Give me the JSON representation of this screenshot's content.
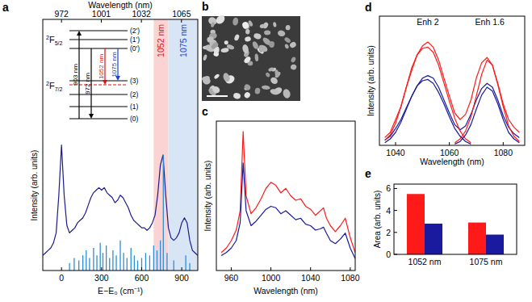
{
  "chart_data": [
    {
      "type": "line",
      "panel_label": "a",
      "x_label": "E−E₀ (cm⁻¹)",
      "x2_label": "Wavelength (nm)",
      "y_label": "Intensity (arb. units)",
      "xlim": [
        -140,
        1020
      ],
      "xticks": [
        0,
        300,
        600,
        900
      ],
      "x2ticks": [
        {
          "value": 0,
          "label": "972"
        },
        {
          "value": 298,
          "label": "1001"
        },
        {
          "value": 598,
          "label": "1032"
        },
        {
          "value": 898,
          "label": "1065"
        }
      ],
      "ylim": [
        0,
        1
      ],
      "tick_labels": "x",
      "bands": [
        {
          "label": "1052 nm",
          "range": [
            690,
            800
          ],
          "color": "#fbd3d3"
        },
        {
          "label": "1075 nm",
          "range": [
            800,
            1020
          ],
          "color": "#d8e5f5"
        }
      ],
      "series": [
        {
          "color": "#1c1c8c",
          "x": [
            -140,
            -120,
            -100,
            -80,
            -60,
            -40,
            -20,
            0,
            20,
            40,
            60,
            80,
            100,
            120,
            140,
            160,
            180,
            200,
            220,
            240,
            260,
            280,
            300,
            320,
            340,
            360,
            380,
            400,
            420,
            440,
            460,
            480,
            500,
            520,
            540,
            560,
            580,
            600,
            620,
            640,
            660,
            680,
            700,
            720,
            740,
            760,
            780,
            800,
            820,
            840,
            860,
            880,
            900,
            920,
            940,
            960,
            980,
            1000,
            1020
          ],
          "values": [
            0.06,
            0.07,
            0.08,
            0.09,
            0.11,
            0.15,
            0.3,
            0.5,
            0.3,
            0.18,
            0.15,
            0.16,
            0.17,
            0.19,
            0.2,
            0.21,
            0.23,
            0.26,
            0.29,
            0.31,
            0.32,
            0.33,
            0.32,
            0.33,
            0.31,
            0.3,
            0.29,
            0.27,
            0.28,
            0.3,
            0.29,
            0.27,
            0.25,
            0.22,
            0.2,
            0.19,
            0.18,
            0.17,
            0.17,
            0.16,
            0.17,
            0.19,
            0.22,
            0.3,
            0.42,
            0.46,
            0.3,
            0.17,
            0.13,
            0.12,
            0.13,
            0.15,
            0.19,
            0.21,
            0.19,
            0.12,
            0.08,
            0.07,
            0.06
          ]
        },
        {
          "type": "stick",
          "color": "#2b8fd6",
          "x": [
            60,
            95,
            130,
            160,
            185,
            210,
            240,
            265,
            290,
            310,
            335,
            360,
            385,
            410,
            440,
            465,
            490,
            520,
            545,
            570,
            600,
            630,
            660,
            690,
            715,
            740,
            762,
            790,
            840,
            930,
            960
          ],
          "values": [
            0.03,
            0.05,
            0.04,
            0.06,
            0.08,
            0.05,
            0.09,
            0.06,
            0.11,
            0.07,
            0.1,
            0.05,
            0.08,
            0.06,
            0.12,
            0.07,
            0.05,
            0.09,
            0.06,
            0.04,
            0.05,
            0.07,
            0.06,
            0.1,
            0.08,
            0.12,
            0.46,
            0.07,
            0.04,
            0.06,
            0.03
          ]
        }
      ],
      "level_diagram": {
        "upper_term": {
          "sup": "2",
          "main": "F",
          "sub": "5/2"
        },
        "upper_levels": [
          "(2')",
          "(1')",
          "(0')"
        ],
        "lower_term": {
          "sup": "2",
          "main": "F",
          "sub": "7/2"
        },
        "lower_levels": [
          "(3)",
          "(2)",
          "(1)",
          "(0)"
        ],
        "transitions": [
          {
            "label": "903 nm",
            "color": "#000000"
          },
          {
            "label": "972 nm",
            "color": "#000000"
          },
          {
            "label": "1052 nm",
            "color": "#e01010"
          },
          {
            "label": "1075 nm",
            "color": "#2040d0"
          }
        ]
      }
    },
    {
      "type": "image",
      "panel_label": "b"
    },
    {
      "type": "line",
      "panel_label": "c",
      "x_label": "Wavelength (nm)",
      "y_label": "Intensity (arb. units)",
      "xlim": [
        945,
        1085
      ],
      "xticks": [
        960,
        1000,
        1040,
        1080
      ],
      "ylim": [
        0,
        1
      ],
      "tick_labels": "x",
      "x": [
        950,
        955,
        960,
        965,
        969,
        972,
        975,
        980,
        985,
        990,
        995,
        1000,
        1005,
        1010,
        1015,
        1020,
        1025,
        1030,
        1035,
        1040,
        1045,
        1050,
        1053,
        1056,
        1060,
        1065,
        1070,
        1075,
        1080,
        1085
      ],
      "series": [
        {
          "color": "#ff1a1a",
          "values": [
            0.12,
            0.15,
            0.2,
            0.27,
            0.4,
            0.93,
            0.5,
            0.38,
            0.42,
            0.48,
            0.55,
            0.59,
            0.57,
            0.52,
            0.55,
            0.5,
            0.47,
            0.48,
            0.43,
            0.41,
            0.37,
            0.4,
            0.42,
            0.35,
            0.3,
            0.26,
            0.3,
            0.35,
            0.22,
            0.12
          ]
        },
        {
          "color": "#1a1a9e",
          "values": [
            0.1,
            0.12,
            0.15,
            0.2,
            0.32,
            0.72,
            0.4,
            0.3,
            0.33,
            0.37,
            0.41,
            0.43,
            0.42,
            0.38,
            0.4,
            0.37,
            0.34,
            0.35,
            0.31,
            0.3,
            0.27,
            0.28,
            0.29,
            0.25,
            0.2,
            0.18,
            0.21,
            0.25,
            0.15,
            0.08
          ]
        }
      ]
    },
    {
      "type": "line",
      "panel_label": "d",
      "x_label": "Wavelength (nm)",
      "y_label": "Intensity (arb. units)",
      "xlim": [
        1034,
        1088
      ],
      "xticks": [
        1040,
        1060,
        1080
      ],
      "ylim": [
        0,
        1
      ],
      "tick_labels": "x",
      "x": [
        1036,
        1038,
        1040,
        1042,
        1044,
        1046,
        1048,
        1050,
        1052,
        1054,
        1056,
        1058,
        1060,
        1062,
        1064,
        1066,
        1068,
        1070,
        1072,
        1074,
        1076,
        1078,
        1080,
        1082,
        1084,
        1086
      ],
      "series": [
        {
          "color": "#ff1a1a",
          "values": [
            0.06,
            0.1,
            0.2,
            0.3,
            0.45,
            0.58,
            0.7,
            0.77,
            0.8,
            0.76,
            0.66,
            0.52,
            0.38,
            0.25,
            0.2,
            0.24,
            0.35,
            0.52,
            0.64,
            0.68,
            0.62,
            0.48,
            0.32,
            0.2,
            0.14,
            0.1
          ]
        },
        {
          "color": "#1a1a9e",
          "values": [
            0.04,
            0.07,
            0.13,
            0.2,
            0.29,
            0.38,
            0.46,
            0.52,
            0.54,
            0.52,
            0.45,
            0.35,
            0.25,
            0.16,
            0.12,
            0.15,
            0.24,
            0.35,
            0.44,
            0.48,
            0.45,
            0.35,
            0.23,
            0.14,
            0.09,
            0.06
          ]
        },
        {
          "color": "#ff1a1a",
          "values": [
            0.04,
            0.08,
            0.17,
            0.3,
            0.45,
            0.6,
            0.7,
            0.75,
            0.76,
            0.72,
            0.62,
            0.48,
            0.34,
            0.21,
            0.11,
            0.05,
            0.02,
            null,
            null,
            null,
            null,
            null,
            null,
            null,
            null,
            null
          ]
        },
        {
          "color": "#ff1a1a",
          "values": [
            null,
            null,
            null,
            null,
            null,
            null,
            null,
            null,
            null,
            null,
            null,
            null,
            null,
            0.02,
            0.05,
            0.11,
            0.22,
            0.38,
            0.55,
            0.66,
            0.62,
            0.47,
            0.3,
            0.15,
            0.07,
            0.03
          ]
        },
        {
          "color": "#1a1a9e",
          "values": [
            0.02,
            0.05,
            0.1,
            0.18,
            0.28,
            0.38,
            0.46,
            0.5,
            0.51,
            0.48,
            0.41,
            0.32,
            0.22,
            0.13,
            0.07,
            0.03,
            0.01,
            null,
            null,
            null,
            null,
            null,
            null,
            null,
            null,
            null
          ]
        },
        {
          "color": "#1a1a9e",
          "values": [
            null,
            null,
            null,
            null,
            null,
            null,
            null,
            null,
            null,
            null,
            null,
            null,
            null,
            0.01,
            0.03,
            0.08,
            0.16,
            0.28,
            0.39,
            0.45,
            0.42,
            0.32,
            0.2,
            0.1,
            0.05,
            0.02
          ]
        }
      ],
      "annotations": [
        {
          "text": "Enh 2",
          "x": 1052,
          "y": 0.93
        },
        {
          "text": "Enh 1.6",
          "x": 1075,
          "y": 0.93
        }
      ]
    },
    {
      "type": "bar",
      "panel_label": "e",
      "y_label": "Area (arb. units)",
      "categories": [
        "1052 nm",
        "1075 nm"
      ],
      "ylim": [
        0,
        6.4
      ],
      "yticks": [
        0,
        2,
        4,
        6
      ],
      "series": [
        {
          "color": "#ff1a1a",
          "values": [
            5.5,
            2.9
          ]
        },
        {
          "color": "#1a1a9e",
          "values": [
            2.8,
            1.8
          ]
        }
      ]
    }
  ]
}
